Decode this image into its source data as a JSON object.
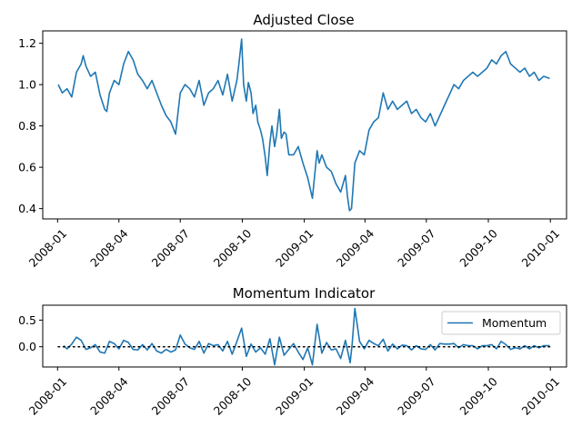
{
  "chart_data": [
    {
      "type": "line",
      "title": "Adjusted Close",
      "xlabel": "",
      "ylabel": "",
      "xlim": [
        "2007-12-10",
        "2010-01-25"
      ],
      "ylim": [
        0.35,
        1.26
      ],
      "x_ticks": [
        "2008-01",
        "2008-04",
        "2008-07",
        "2008-10",
        "2009-01",
        "2009-04",
        "2009-07",
        "2009-10",
        "2010-01"
      ],
      "y_ticks": [
        "0.4",
        "0.6",
        "0.8",
        "1.0",
        "1.2"
      ],
      "grid": false,
      "series": [
        {
          "color": "#1f77b4",
          "x": [
            "2008-01-02",
            "2008-01-08",
            "2008-01-15",
            "2008-01-22",
            "2008-01-29",
            "2008-02-05",
            "2008-02-08",
            "2008-02-12",
            "2008-02-19",
            "2008-02-26",
            "2008-03-04",
            "2008-03-11",
            "2008-03-14",
            "2008-03-18",
            "2008-03-25",
            "2008-04-01",
            "2008-04-08",
            "2008-04-15",
            "2008-04-22",
            "2008-04-29",
            "2008-05-06",
            "2008-05-13",
            "2008-05-20",
            "2008-05-27",
            "2008-06-03",
            "2008-06-10",
            "2008-06-17",
            "2008-06-24",
            "2008-07-01",
            "2008-07-08",
            "2008-07-15",
            "2008-07-22",
            "2008-07-29",
            "2008-08-05",
            "2008-08-12",
            "2008-08-19",
            "2008-08-26",
            "2008-09-02",
            "2008-09-09",
            "2008-09-16",
            "2008-09-23",
            "2008-09-26",
            "2008-09-30",
            "2008-10-03",
            "2008-10-07",
            "2008-10-10",
            "2008-10-14",
            "2008-10-17",
            "2008-10-21",
            "2008-10-24",
            "2008-10-28",
            "2008-10-31",
            "2008-11-04",
            "2008-11-07",
            "2008-11-11",
            "2008-11-14",
            "2008-11-18",
            "2008-11-21",
            "2008-11-25",
            "2008-11-28",
            "2008-12-02",
            "2008-12-05",
            "2008-12-09",
            "2008-12-16",
            "2008-12-23",
            "2008-12-30",
            "2009-01-06",
            "2009-01-13",
            "2009-01-20",
            "2009-01-23",
            "2009-01-27",
            "2009-02-03",
            "2009-02-10",
            "2009-02-17",
            "2009-02-24",
            "2009-03-03",
            "2009-03-06",
            "2009-03-09",
            "2009-03-12",
            "2009-03-17",
            "2009-03-24",
            "2009-03-31",
            "2009-04-07",
            "2009-04-14",
            "2009-04-21",
            "2009-04-28",
            "2009-05-05",
            "2009-05-12",
            "2009-05-19",
            "2009-05-26",
            "2009-06-02",
            "2009-06-09",
            "2009-06-16",
            "2009-06-23",
            "2009-06-30",
            "2009-07-07",
            "2009-07-14",
            "2009-07-21",
            "2009-07-28",
            "2009-08-04",
            "2009-08-11",
            "2009-08-18",
            "2009-08-25",
            "2009-09-01",
            "2009-09-08",
            "2009-09-15",
            "2009-09-22",
            "2009-09-29",
            "2009-10-06",
            "2009-10-13",
            "2009-10-20",
            "2009-10-27",
            "2009-11-03",
            "2009-11-10",
            "2009-11-17",
            "2009-11-24",
            "2009-12-01",
            "2009-12-08",
            "2009-12-15",
            "2009-12-22",
            "2009-12-31"
          ],
          "values": [
            1.0,
            0.96,
            0.98,
            0.94,
            1.06,
            1.1,
            1.14,
            1.09,
            1.04,
            1.06,
            0.95,
            0.88,
            0.87,
            0.96,
            1.02,
            1.0,
            1.1,
            1.16,
            1.12,
            1.05,
            1.02,
            0.98,
            1.02,
            0.96,
            0.9,
            0.85,
            0.82,
            0.76,
            0.96,
            1.0,
            0.98,
            0.94,
            1.02,
            0.9,
            0.96,
            0.98,
            1.02,
            0.95,
            1.05,
            0.92,
            1.02,
            1.1,
            1.22,
            1.0,
            0.92,
            1.01,
            0.96,
            0.86,
            0.9,
            0.82,
            0.78,
            0.74,
            0.65,
            0.56,
            0.72,
            0.8,
            0.7,
            0.76,
            0.88,
            0.74,
            0.77,
            0.76,
            0.66,
            0.66,
            0.7,
            0.62,
            0.55,
            0.45,
            0.68,
            0.62,
            0.66,
            0.6,
            0.58,
            0.52,
            0.48,
            0.56,
            0.46,
            0.39,
            0.4,
            0.62,
            0.68,
            0.66,
            0.78,
            0.82,
            0.84,
            0.96,
            0.88,
            0.92,
            0.88,
            0.9,
            0.92,
            0.86,
            0.88,
            0.84,
            0.82,
            0.86,
            0.8,
            0.85,
            0.9,
            0.95,
            1.0,
            0.98,
            1.02,
            1.04,
            1.06,
            1.04,
            1.06,
            1.08,
            1.12,
            1.1,
            1.14,
            1.16,
            1.1,
            1.08,
            1.06,
            1.08,
            1.04,
            1.06,
            1.02,
            1.04,
            1.03
          ]
        }
      ]
    },
    {
      "type": "line",
      "title": "Momentum Indicator",
      "xlabel": "",
      "ylabel": "",
      "xlim": [
        "2007-12-10",
        "2010-01-25"
      ],
      "ylim": [
        -0.38,
        0.78
      ],
      "x_ticks": [
        "2008-01",
        "2008-04",
        "2008-07",
        "2008-10",
        "2009-01",
        "2009-04",
        "2009-07",
        "2009-10",
        "2010-01"
      ],
      "y_ticks": [
        "0.5",
        "0.0"
      ],
      "grid": false,
      "legend_position": "top-right",
      "series": [
        {
          "name": "Momentum",
          "color": "#1f77b4",
          "x": [
            "2008-01-10",
            "2008-01-15",
            "2008-01-22",
            "2008-01-29",
            "2008-02-05",
            "2008-02-12",
            "2008-02-19",
            "2008-02-26",
            "2008-03-04",
            "2008-03-11",
            "2008-03-18",
            "2008-03-25",
            "2008-04-01",
            "2008-04-08",
            "2008-04-15",
            "2008-04-22",
            "2008-04-29",
            "2008-05-06",
            "2008-05-13",
            "2008-05-20",
            "2008-05-27",
            "2008-06-03",
            "2008-06-10",
            "2008-06-17",
            "2008-06-24",
            "2008-07-01",
            "2008-07-08",
            "2008-07-15",
            "2008-07-22",
            "2008-07-29",
            "2008-08-05",
            "2008-08-12",
            "2008-08-19",
            "2008-08-26",
            "2008-09-02",
            "2008-09-09",
            "2008-09-16",
            "2008-09-23",
            "2008-09-30",
            "2008-10-07",
            "2008-10-14",
            "2008-10-21",
            "2008-10-28",
            "2008-11-04",
            "2008-11-11",
            "2008-11-18",
            "2008-11-25",
            "2008-12-02",
            "2008-12-09",
            "2008-12-16",
            "2008-12-23",
            "2008-12-30",
            "2009-01-06",
            "2009-01-13",
            "2009-01-20",
            "2009-01-27",
            "2009-02-03",
            "2009-02-10",
            "2009-02-17",
            "2009-02-24",
            "2009-03-03",
            "2009-03-10",
            "2009-03-13",
            "2009-03-17",
            "2009-03-24",
            "2009-03-31",
            "2009-04-07",
            "2009-04-14",
            "2009-04-21",
            "2009-04-28",
            "2009-05-05",
            "2009-05-12",
            "2009-05-19",
            "2009-05-26",
            "2009-06-02",
            "2009-06-09",
            "2009-06-16",
            "2009-06-23",
            "2009-06-30",
            "2009-07-07",
            "2009-07-14",
            "2009-07-21",
            "2009-07-28",
            "2009-08-04",
            "2009-08-11",
            "2009-08-18",
            "2009-08-25",
            "2009-09-01",
            "2009-09-08",
            "2009-09-15",
            "2009-09-22",
            "2009-09-29",
            "2009-10-06",
            "2009-10-13",
            "2009-10-20",
            "2009-10-27",
            "2009-11-03",
            "2009-11-10",
            "2009-11-17",
            "2009-11-24",
            "2009-12-01",
            "2009-12-08",
            "2009-12-15",
            "2009-12-22",
            "2009-12-31"
          ],
          "values": [
            0.02,
            -0.04,
            0.05,
            0.18,
            0.12,
            -0.05,
            -0.02,
            0.04,
            -0.1,
            -0.12,
            0.1,
            0.06,
            -0.04,
            0.12,
            0.08,
            -0.05,
            -0.06,
            0.04,
            -0.06,
            0.06,
            -0.08,
            -0.12,
            -0.05,
            -0.1,
            -0.06,
            0.22,
            0.05,
            -0.02,
            -0.05,
            0.1,
            -0.12,
            0.06,
            0.02,
            0.04,
            -0.08,
            0.1,
            -0.14,
            0.1,
            0.35,
            -0.18,
            0.05,
            -0.1,
            -0.02,
            -0.14,
            0.15,
            -0.34,
            0.18,
            -0.16,
            -0.05,
            0.06,
            -0.1,
            -0.24,
            -0.02,
            -0.34,
            0.42,
            -0.12,
            0.08,
            -0.06,
            -0.04,
            -0.22,
            0.12,
            -0.3,
            0.05,
            0.72,
            0.1,
            -0.04,
            0.12,
            0.06,
            0.02,
            0.14,
            -0.08,
            0.05,
            -0.04,
            0.03,
            0.02,
            -0.06,
            0.02,
            -0.04,
            -0.05,
            0.04,
            -0.06,
            0.06,
            0.05,
            0.05,
            0.06,
            -0.02,
            0.04,
            0.02,
            0.02,
            -0.04,
            0.02,
            0.02,
            0.04,
            -0.04,
            0.1,
            0.04,
            -0.05,
            -0.02,
            -0.04,
            0.02,
            -0.04,
            0.02,
            -0.02,
            0.02,
            0.02
          ]
        },
        {
          "line_style": "dotted",
          "color": "#000000",
          "x": [
            "2008-01-02",
            "2009-12-31"
          ],
          "values": [
            0,
            0
          ]
        }
      ]
    }
  ]
}
